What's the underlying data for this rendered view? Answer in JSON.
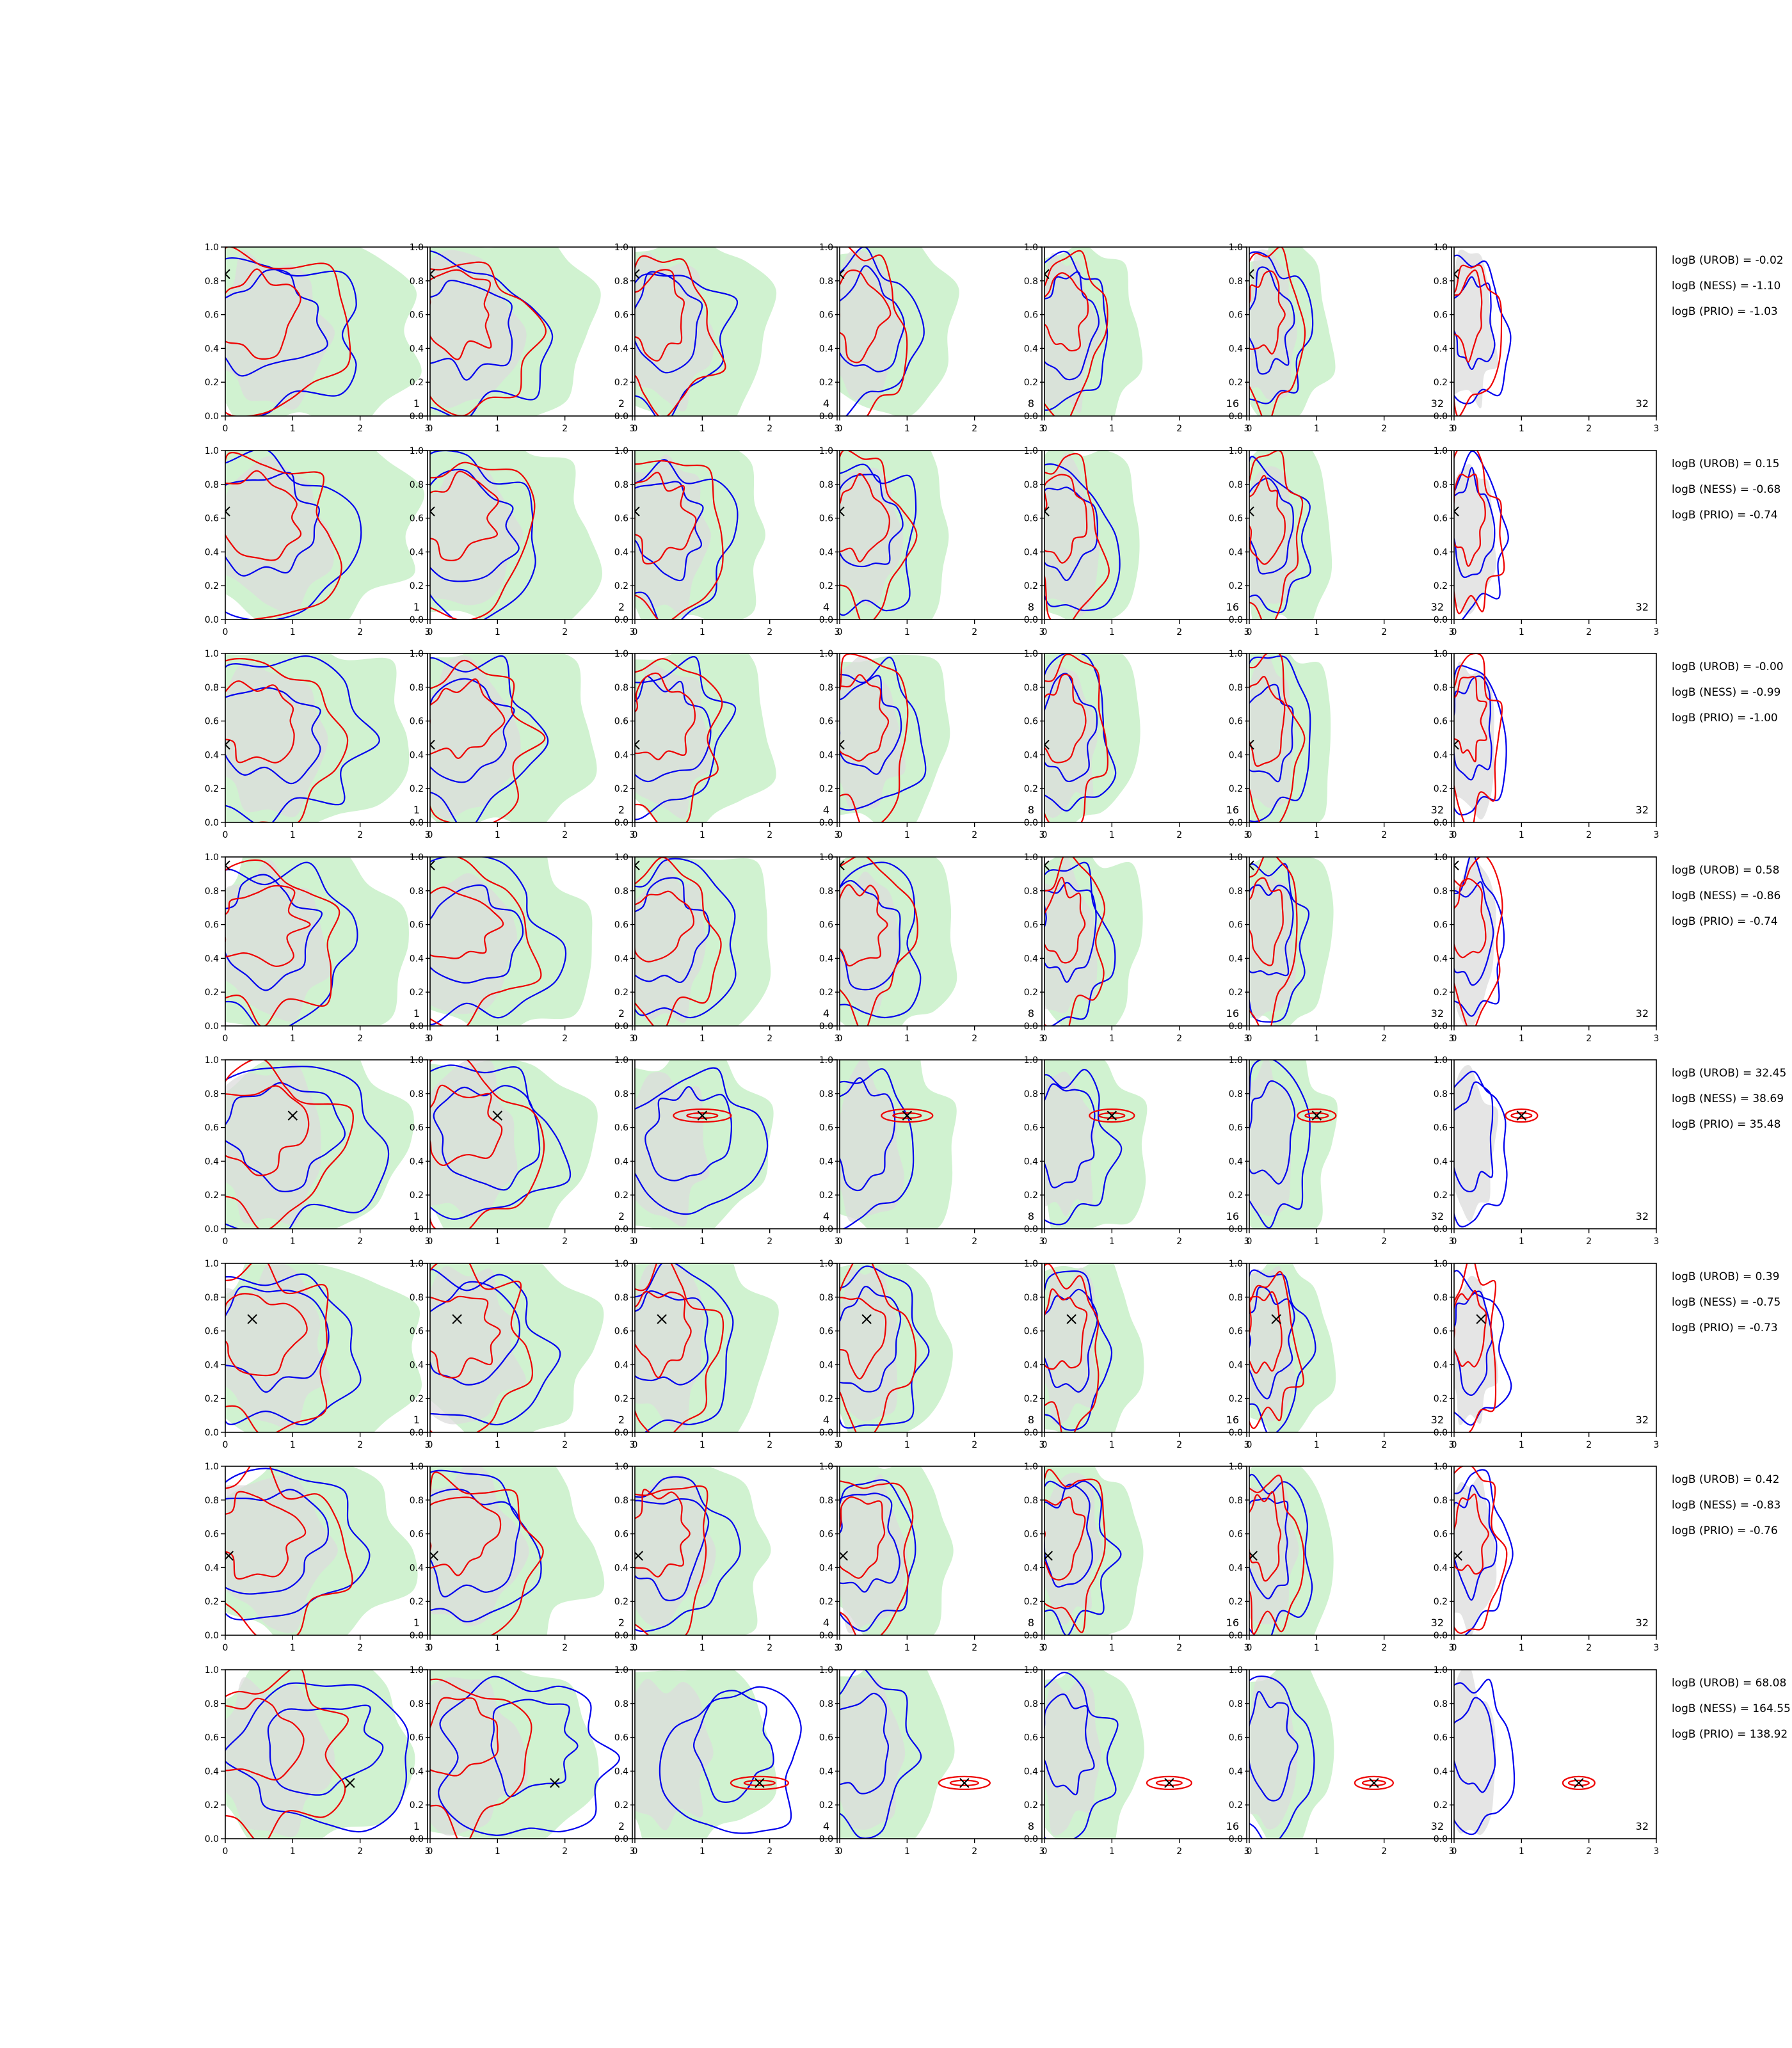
{
  "chart_data": {
    "type": "contour-grid",
    "rows": 8,
    "cols": 7,
    "xlim": [
      0,
      3
    ],
    "ylim": [
      0,
      1
    ],
    "xticks": [
      "0",
      "1",
      "2",
      "3"
    ],
    "yticks": [
      "0.0",
      "0.2",
      "0.4",
      "0.6",
      "0.8",
      "1.0"
    ],
    "panel_labels": [
      "1",
      "2",
      "4",
      "8",
      "16",
      "32",
      "32"
    ],
    "colors": {
      "urob": "#0000ee",
      "ness": "#ee0000",
      "prior_fill": "#c8f0c8",
      "grey_fill": "#dcdcdc",
      "truth_marker": "#000000"
    },
    "truth": [
      {
        "x": 0.0,
        "y": 0.84
      },
      {
        "x": 0.0,
        "y": 0.64
      },
      {
        "x": 0.0,
        "y": 0.46
      },
      {
        "x": 0.0,
        "y": 0.95
      },
      {
        "x": 1.0,
        "y": 0.67
      },
      {
        "x": 0.4,
        "y": 0.67
      },
      {
        "x": 0.05,
        "y": 0.47
      },
      {
        "x": 1.85,
        "y": 0.33
      }
    ],
    "logB": [
      [
        "logB (UROB) = -0.02",
        "logB (NESS) = -1.10",
        "logB (PRIO) = -1.03"
      ],
      [
        "logB (UROB) = 0.15",
        "logB (NESS) = -0.68",
        "logB (PRIO) = -0.74"
      ],
      [
        "logB (UROB) = -0.00",
        "logB (NESS) = -0.99",
        "logB (PRIO) = -1.00"
      ],
      [
        "logB (UROB) = 0.58",
        "logB (NESS) = -0.86",
        "logB (PRIO) = -0.74"
      ],
      [
        "logB (UROB) = 32.45",
        "logB (NESS) = 38.69",
        "logB (PRIO) = 35.48"
      ],
      [
        "logB (UROB) = 0.39",
        "logB (NESS) = -0.75",
        "logB (PRIO) = -0.73"
      ],
      [
        "logB (UROB) = 0.42",
        "logB (NESS) = -0.83",
        "logB (PRIO) = -0.76"
      ],
      [
        "logB (UROB) = 68.08",
        "logB (NESS) = 164.55",
        "logB (PRIO) = 138.92"
      ]
    ]
  }
}
